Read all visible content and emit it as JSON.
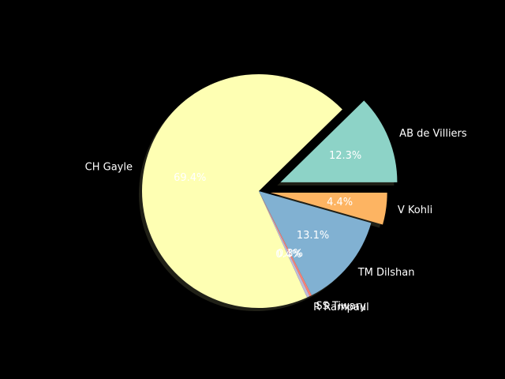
{
  "chart_data": {
    "type": "pie",
    "title": "",
    "labels": [
      "AB de Villiers",
      "CH Gayle",
      "R Rampaul",
      "SS Tiwary",
      "TM Dilshan",
      "V Kohli"
    ],
    "values": [
      12.3,
      69.4,
      0.4,
      0.3,
      13.1,
      4.4
    ],
    "percent_labels": [
      "12.3%",
      "69.4%",
      "0.4%",
      "0.3%",
      "13.1%",
      "4.4%"
    ],
    "explode": [
      0.2,
      0,
      0,
      0,
      0,
      0.1
    ],
    "start_angle_deg": 0,
    "counterclockwise": true,
    "shadow": true,
    "colors": [
      "#8dd3c7",
      "#feffb3",
      "#bfbbd9",
      "#fa8174",
      "#81b1d2",
      "#fdb462"
    ],
    "background": "#000000"
  }
}
